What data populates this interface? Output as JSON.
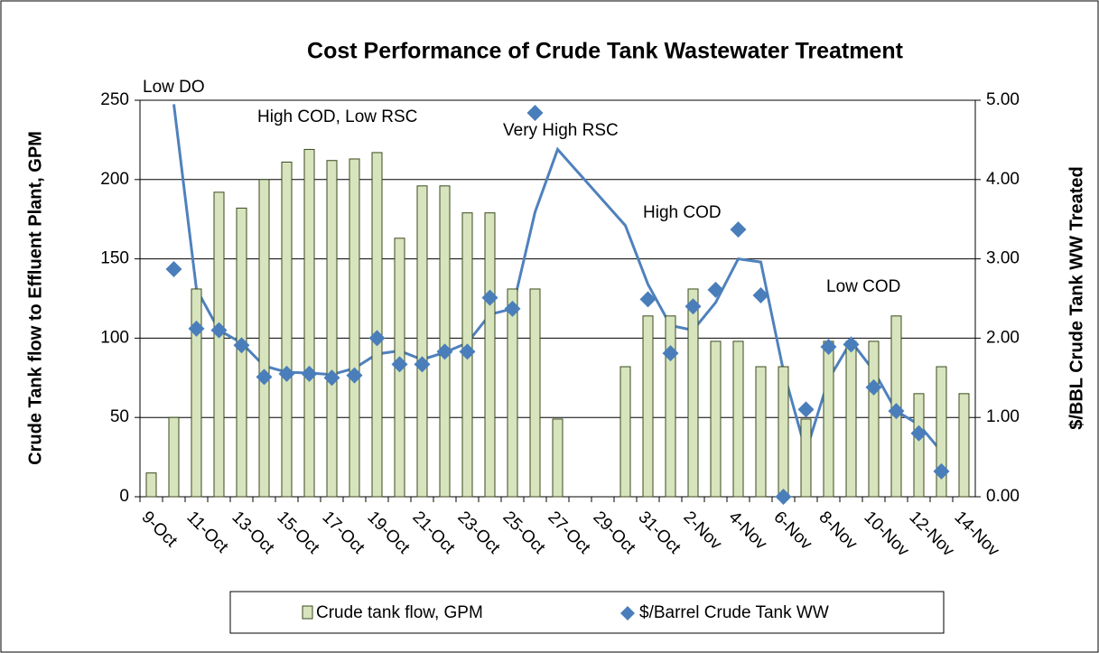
{
  "chart_data": {
    "type": "bar",
    "title": "Cost Performance of Crude Tank Wastewater Treatment",
    "y_label": "Crude Tank flow to Effluent Plant, GPM",
    "y2_label": "$/BBL Crude Tank WW Treated",
    "categories": [
      "9-Oct",
      null,
      "11-Oct",
      null,
      "13-Oct",
      null,
      "15-Oct",
      null,
      "17-Oct",
      null,
      "19-Oct",
      null,
      "21-Oct",
      null,
      "23-Oct",
      null,
      "25-Oct",
      null,
      "27-Oct",
      null,
      "29-Oct",
      null,
      "31-Oct",
      null,
      "2-Nov",
      null,
      "4-Nov",
      null,
      "6-Nov",
      null,
      "8-Nov",
      null,
      "10-Nov",
      null,
      "12-Nov",
      null,
      "14-Nov"
    ],
    "series": [
      {
        "name": "Crude tank flow, GPM",
        "type": "bar",
        "color": "#d7e4bd",
        "stroke": "#3b4a1e",
        "values": [
          15,
          50,
          131,
          192,
          182,
          200,
          211,
          219,
          212,
          213,
          217,
          163,
          196,
          196,
          179,
          179,
          131,
          131,
          49,
          null,
          null,
          82,
          114,
          114,
          131,
          98,
          98,
          82,
          82,
          49,
          98,
          98,
          98,
          114,
          65,
          82,
          65
        ]
      },
      {
        "name": "$/Barrel Crude Tank WW",
        "type": "scatter",
        "axis": "y2",
        "color": "#4a7ebb",
        "values": [
          null,
          2.87,
          2.12,
          2.1,
          1.91,
          1.51,
          1.55,
          1.55,
          1.5,
          1.53,
          2.0,
          1.67,
          1.67,
          1.83,
          1.83,
          2.51,
          2.37,
          4.84,
          null,
          null,
          null,
          null,
          2.49,
          1.81,
          2.4,
          2.61,
          3.37,
          2.54,
          0.0,
          1.1,
          1.89,
          1.92,
          1.38,
          1.08,
          0.8,
          0.32,
          null
        ]
      }
    ],
    "trendline": {
      "axis": "y2",
      "color": "#4f81bd",
      "values": [
        null,
        4.95,
        2.62,
        2.1,
        1.94,
        1.65,
        1.57,
        1.56,
        1.54,
        1.62,
        1.8,
        1.84,
        1.73,
        1.82,
        1.94,
        2.3,
        2.37,
        3.59,
        4.38,
        4.06,
        3.74,
        3.42,
        2.68,
        2.16,
        2.1,
        2.45,
        3.0,
        2.96,
        1.59,
        0.57,
        1.48,
        1.96,
        1.59,
        1.08,
        0.91,
        0.57,
        null
      ]
    },
    "annotations": [
      "Low DO",
      "High COD, Low RSC",
      "Very High RSC",
      "High COD",
      "Low COD"
    ],
    "ylim": [
      0,
      250
    ],
    "yticks": [
      0,
      50,
      100,
      150,
      200,
      250
    ],
    "y2lim": [
      0,
      5
    ],
    "y2ticks": [
      {
        "value": 0,
        "label": "0.00"
      },
      {
        "value": 1,
        "label": "1.00"
      },
      {
        "value": 2,
        "label": "2.00"
      },
      {
        "value": 3,
        "label": "3.00"
      },
      {
        "value": 4,
        "label": "4.00"
      },
      {
        "value": 5,
        "label": "5.00"
      }
    ],
    "grid": true,
    "legend": "bottom"
  }
}
